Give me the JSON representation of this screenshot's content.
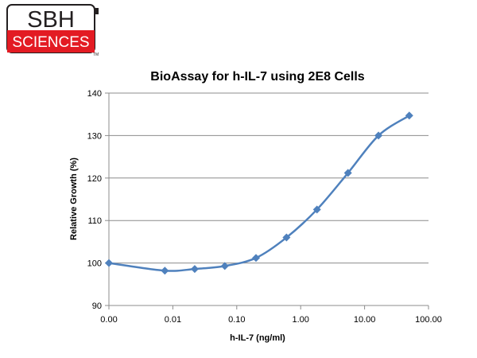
{
  "logo": {
    "line1": "SBH",
    "line2": "SCIENCES",
    "tm": "TM",
    "colors": {
      "dark": "#231f20",
      "red": "#e31b23"
    }
  },
  "chart_data": {
    "type": "line",
    "title": "BioAssay for h-IL-7 using 2E8 Cells",
    "xlabel": "h-IL-7 (ng/ml)",
    "ylabel": "Relative Growth (%)",
    "x_scale": "log",
    "x_ticks": [
      "0.00",
      "0.01",
      "0.10",
      "1.00",
      "10.00",
      "100.00"
    ],
    "y_ticks": [
      "90",
      "100",
      "110",
      "120",
      "130",
      "140"
    ],
    "ylim": [
      90,
      140
    ],
    "grid": true,
    "legend": "none",
    "line_color": "#4f81bd",
    "series": [
      {
        "x": [
          0.001,
          0.0075,
          0.022,
          0.065,
          0.2,
          0.6,
          1.8,
          5.5,
          16.5,
          50
        ],
        "values": [
          100,
          98.2,
          98.6,
          99.3,
          101.2,
          106,
          112.6,
          121.2,
          130,
          134.7
        ]
      }
    ]
  }
}
